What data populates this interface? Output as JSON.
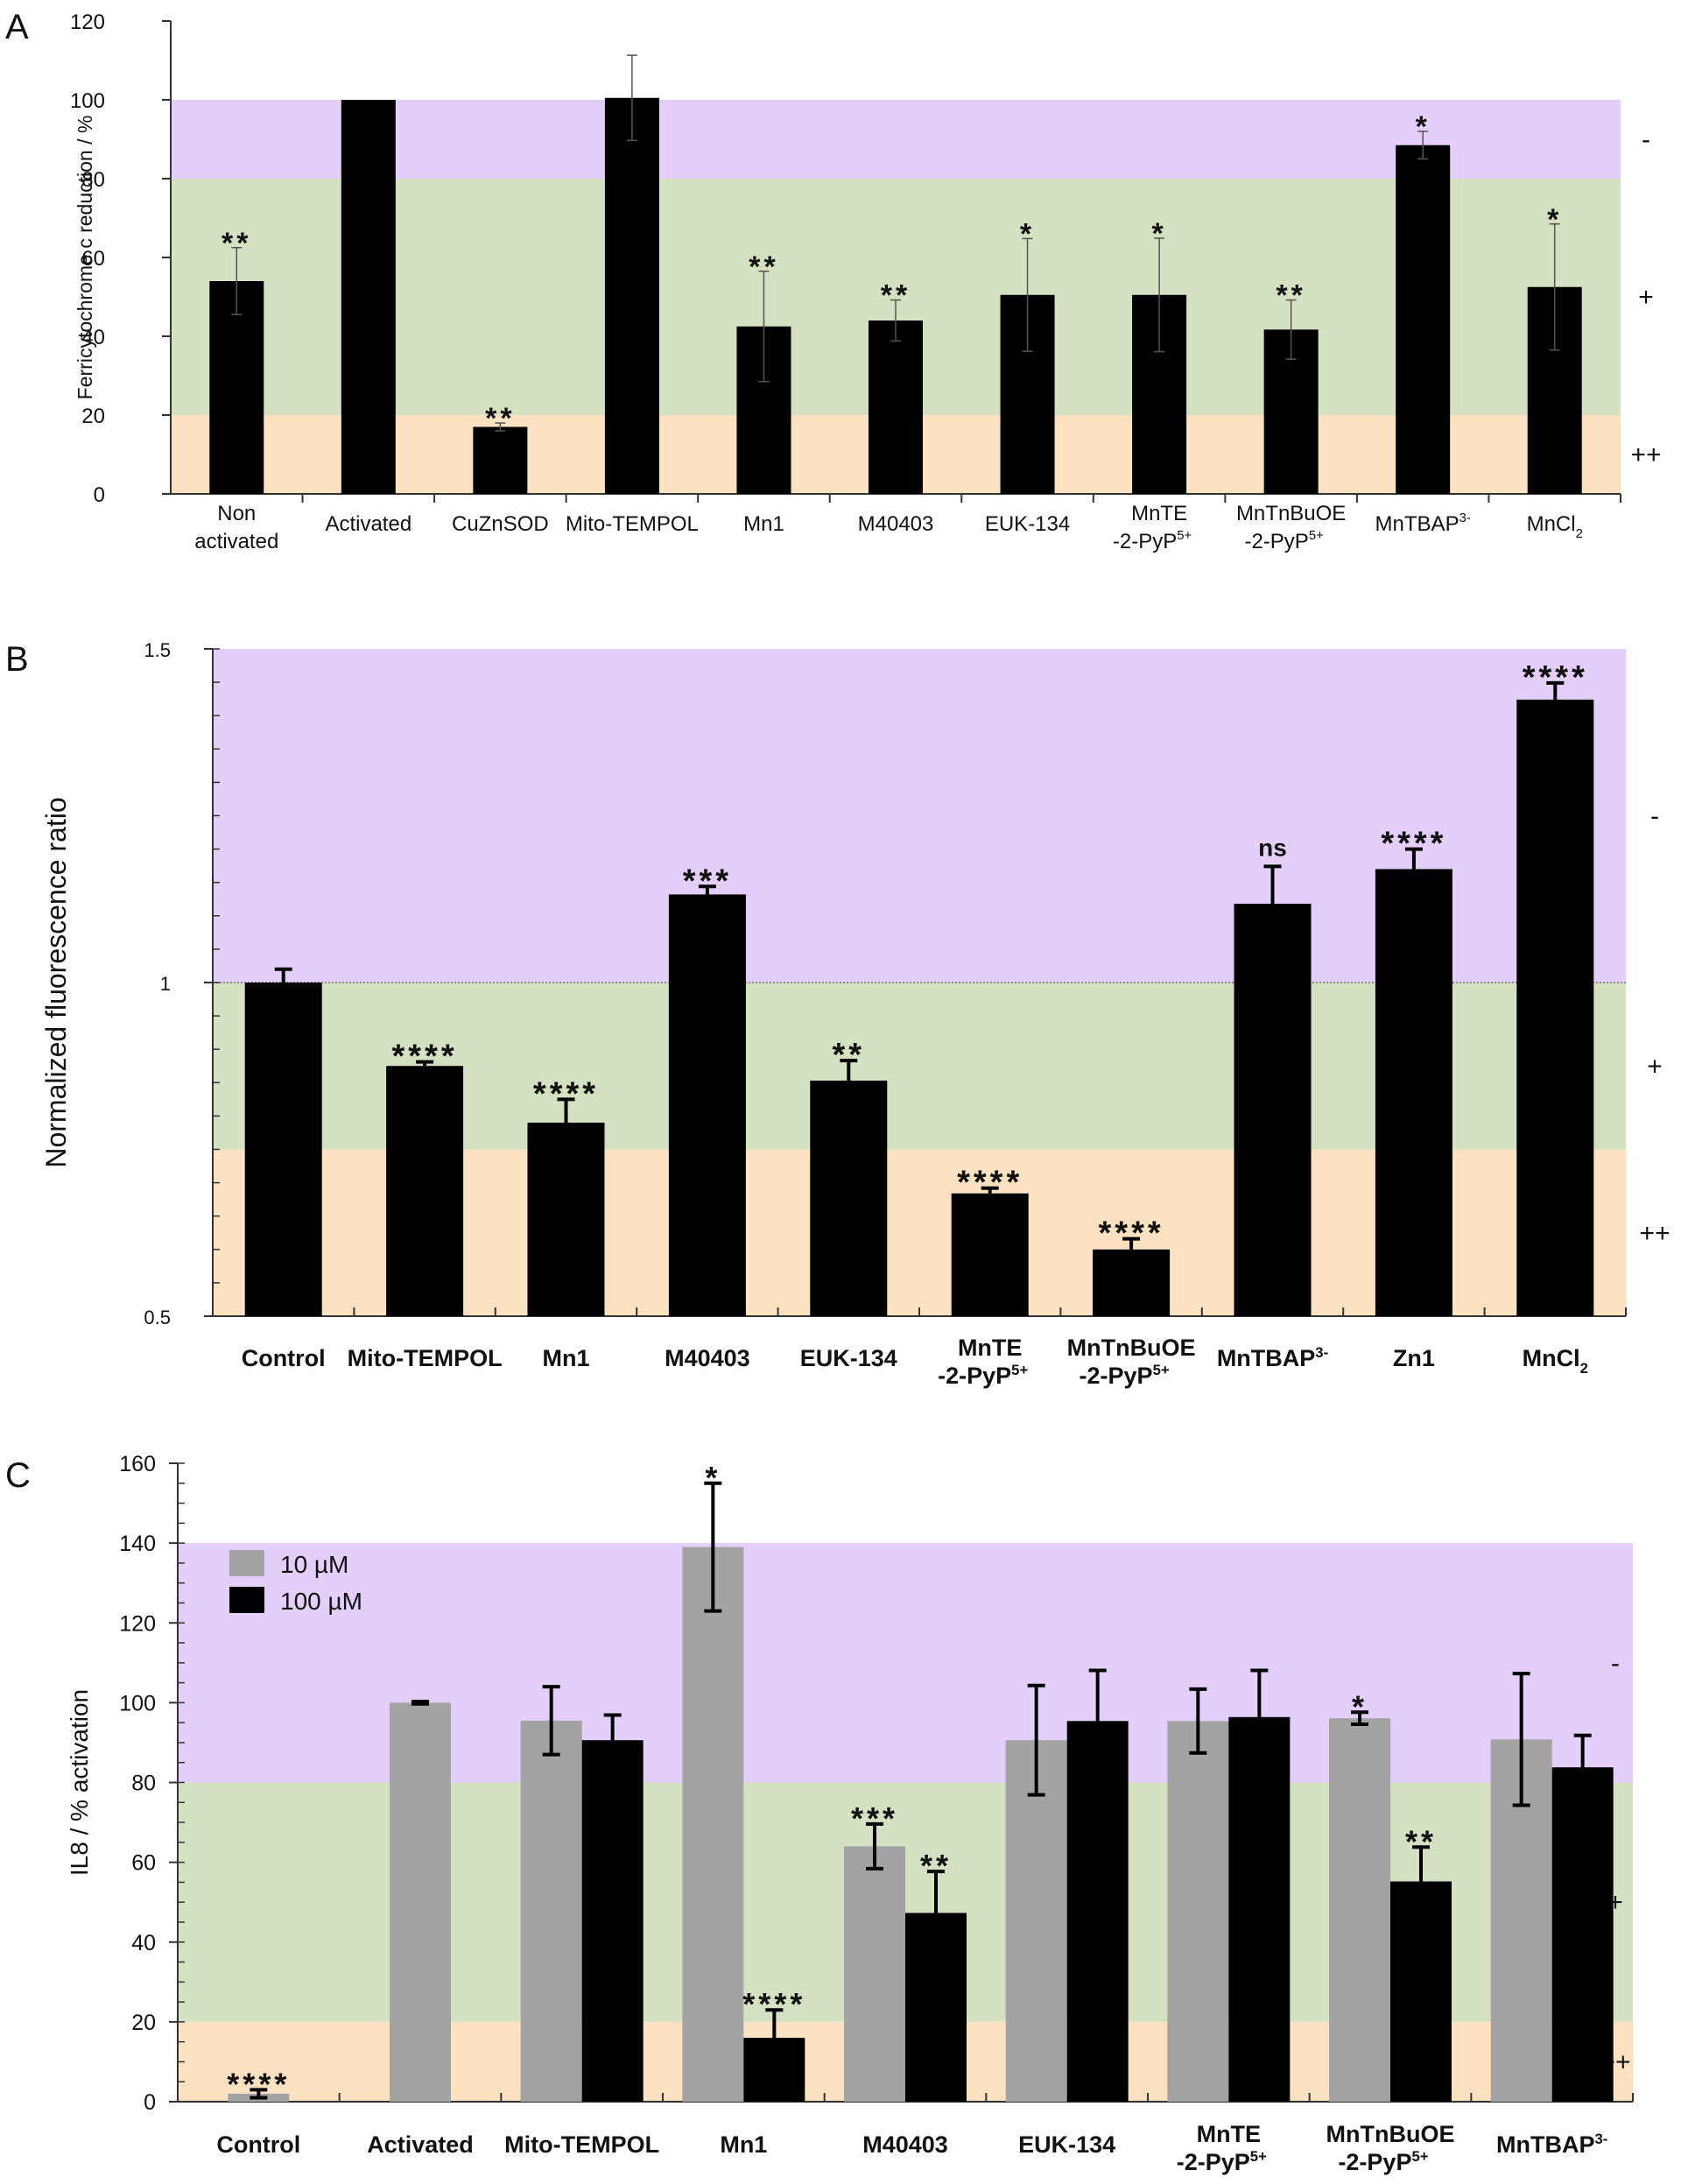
{
  "colors": {
    "band_minus": "#e3cffa",
    "band_plus": "#d4e2c2",
    "band_plusplus": "#fde2c1",
    "bar_black": "#000000",
    "bar_gray": "#a3a3a3",
    "legend_gray_text": "#a0a0a0"
  },
  "chart_data": [
    {
      "panel": "A",
      "type": "bar",
      "ylabel": "Ferricytochrome c reduction / %",
      "ylim": [
        0,
        120
      ],
      "yticks": [
        0,
        20,
        40,
        60,
        80,
        100,
        120
      ],
      "ytick_labels": [
        "0",
        "20",
        "40",
        "60",
        "80",
        "100",
        "120"
      ],
      "bands": [
        {
          "from": 80,
          "to": 100,
          "label": "-",
          "color_key": "band_minus"
        },
        {
          "from": 20,
          "to": 80,
          "label": "+",
          "color_key": "band_plus"
        },
        {
          "from": 0,
          "to": 20,
          "label": "++",
          "color_key": "band_plusplus"
        }
      ],
      "categories": [
        {
          "lines": [
            "Non",
            "activated"
          ]
        },
        {
          "lines": [
            "Activated"
          ]
        },
        {
          "lines": [
            "CuZnSOD"
          ]
        },
        {
          "lines": [
            "Mito-TEMPOL"
          ]
        },
        {
          "lines": [
            "Mn1"
          ]
        },
        {
          "lines": [
            "M40403"
          ]
        },
        {
          "lines": [
            "EUK-134"
          ]
        },
        {
          "lines": [
            "MnTE",
            "-2-PyP",
            "5+"
          ],
          "super_on": 1
        },
        {
          "lines": [
            "MnTnBuOE",
            "-2-PyP",
            "5+"
          ],
          "super_on": 1
        },
        {
          "lines": [
            "MnTBAP",
            "3-"
          ],
          "super_on": 0
        },
        {
          "lines": [
            "MnCl",
            "2"
          ],
          "sub_on": 0
        }
      ],
      "series": [
        {
          "name": "value",
          "values": [
            54,
            100,
            17,
            100.5,
            42.5,
            44,
            50.5,
            50.5,
            41.7,
            88.5,
            52.5
          ],
          "errors": [
            8.5,
            0,
            1,
            10.8,
            14,
            5.2,
            14.3,
            14.4,
            7.5,
            3.5,
            16
          ],
          "significance": [
            "**",
            "",
            "**",
            "",
            "**",
            "**",
            "*",
            "*",
            "**",
            "*",
            "*"
          ]
        }
      ]
    },
    {
      "panel": "B",
      "type": "bar",
      "ylabel": "Normalized fluorescence ratio",
      "ylim": [
        0.5,
        1.5
      ],
      "yticks": [
        0.5,
        1,
        1.5
      ],
      "ytick_labels": [
        "0.5",
        "1",
        "1.5"
      ],
      "minor_tick_step": 0.05,
      "reference_line": 1.0,
      "bands": [
        {
          "from": 1.0,
          "to": 1.5,
          "label": "-",
          "color_key": "band_minus"
        },
        {
          "from": 0.75,
          "to": 1.0,
          "label": "+",
          "color_key": "band_plus"
        },
        {
          "from": 0.5,
          "to": 0.75,
          "label": "++",
          "color_key": "band_plusplus"
        }
      ],
      "categories": [
        {
          "lines": [
            "Control"
          ]
        },
        {
          "lines": [
            "Mito-TEMPOL"
          ]
        },
        {
          "lines": [
            "Mn1"
          ]
        },
        {
          "lines": [
            "M40403"
          ]
        },
        {
          "lines": [
            "EUK-134"
          ]
        },
        {
          "lines": [
            "MnTE",
            "-2-PyP",
            "5+"
          ],
          "super_on": 1
        },
        {
          "lines": [
            "MnTnBuOE",
            "-2-PyP",
            "5+"
          ],
          "super_on": 1
        },
        {
          "lines": [
            "MnTBAP",
            "3-"
          ],
          "super_on": 0
        },
        {
          "lines": [
            "Zn1"
          ]
        },
        {
          "lines": [
            "MnCl",
            "2"
          ],
          "sub_on": 0
        }
      ],
      "series": [
        {
          "name": "value",
          "values": [
            1.0,
            0.875,
            0.79,
            1.132,
            0.853,
            0.684,
            0.6,
            1.118,
            1.17,
            1.424
          ],
          "errors": [
            0.02,
            0.006,
            0.035,
            0.012,
            0.03,
            0.008,
            0.016,
            0.056,
            0.03,
            0.025
          ],
          "significance": [
            "",
            "****",
            "****",
            "***",
            "**",
            "****",
            "****",
            "ns",
            "****",
            "****"
          ]
        }
      ]
    },
    {
      "panel": "C",
      "type": "bar",
      "ylabel": "IL8 / % activation",
      "ylim": [
        0,
        160
      ],
      "yticks": [
        0,
        20,
        40,
        60,
        80,
        100,
        120,
        140,
        160
      ],
      "ytick_labels": [
        "0",
        "20",
        "40",
        "60",
        "80",
        "100",
        "120",
        "140",
        "160"
      ],
      "minor_tick_step": 5,
      "bands": [
        {
          "from": 80,
          "to": 140,
          "label": "-",
          "color_key": "band_minus"
        },
        {
          "from": 20,
          "to": 80,
          "label": "+",
          "color_key": "band_plus"
        },
        {
          "from": 0,
          "to": 20,
          "label": "++",
          "color_key": "band_plusplus"
        }
      ],
      "legend": {
        "position": "top-left",
        "entries": [
          {
            "label": "10 µM",
            "color_key": "bar_gray"
          },
          {
            "label": "100 µM",
            "color_key": "bar_black"
          }
        ]
      },
      "categories": [
        {
          "lines": [
            "Control"
          ]
        },
        {
          "lines": [
            "Activated"
          ]
        },
        {
          "lines": [
            "Mito-TEMPOL"
          ]
        },
        {
          "lines": [
            "Mn1"
          ]
        },
        {
          "lines": [
            "M40403"
          ]
        },
        {
          "lines": [
            "EUK-134"
          ]
        },
        {
          "lines": [
            "MnTE",
            "-2-PyP",
            "5+"
          ],
          "super_on": 1
        },
        {
          "lines": [
            "MnTnBuOE",
            "-2-PyP",
            "5+"
          ],
          "super_on": 1
        },
        {
          "lines": [
            "MnTBAP",
            "3-"
          ],
          "super_on": 0
        }
      ],
      "series": [
        {
          "name": "10 µM",
          "color_key": "bar_gray",
          "values": [
            2,
            100,
            95.5,
            139,
            64,
            90.6,
            95.4,
            96.1,
            90.8
          ],
          "errors": [
            1,
            0.3,
            8.5,
            16,
            5.6,
            13.7,
            8,
            1.5,
            16.5
          ],
          "significance": [
            "****",
            "",
            "",
            "*",
            "***",
            "",
            "",
            "*",
            ""
          ]
        },
        {
          "name": "100 µM",
          "color_key": "bar_black",
          "values": [
            null,
            null,
            90.6,
            16,
            47.3,
            95.4,
            96.4,
            55.2,
            83.8
          ],
          "errors": [
            null,
            null,
            6.3,
            7,
            10.4,
            12.7,
            11.7,
            8.6,
            8
          ],
          "significance": [
            "",
            "",
            "",
            "****",
            "**",
            "",
            "",
            "**",
            ""
          ]
        }
      ]
    }
  ],
  "panels": {
    "A": {
      "letter": "A"
    },
    "B": {
      "letter": "B"
    },
    "C": {
      "letter": "C"
    }
  }
}
